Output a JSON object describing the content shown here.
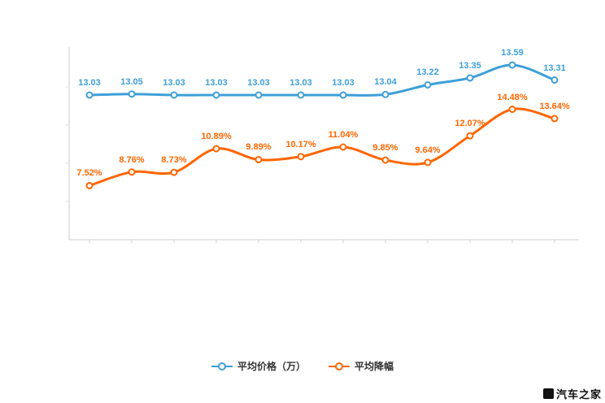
{
  "watermark": {
    "text": "汽车之家"
  },
  "legend": [
    {
      "label": "平均价格（万）",
      "color": "#3d9fd8"
    },
    {
      "label": "平均降幅",
      "color": "#ff6600"
    }
  ],
  "chart_data": {
    "type": "line",
    "title": "",
    "xlabel": "",
    "ylabel": "",
    "grid": false,
    "legend_position": "bottom",
    "x_tick_labels_visible": false,
    "n_points": 12,
    "series": [
      {
        "name": "平均价格（万）",
        "color": "#3d9fd8",
        "values": [
          13.03,
          13.05,
          13.03,
          13.03,
          13.03,
          13.03,
          13.03,
          13.04,
          13.22,
          13.35,
          13.59,
          13.31
        ],
        "labels": [
          "13.03",
          "13.05",
          "13.03",
          "13.03",
          "13.03",
          "13.03",
          "13.03",
          "13.04",
          "13.22",
          "13.35",
          "13.59",
          "13.31"
        ]
      },
      {
        "name": "平均降幅",
        "color": "#ff6600",
        "values": [
          7.52,
          8.76,
          8.73,
          10.89,
          9.89,
          10.17,
          11.04,
          9.85,
          9.64,
          12.07,
          14.48,
          13.64
        ],
        "labels": [
          "7.52%",
          "8.76%",
          "8.73%",
          "10.89%",
          "9.89%",
          "10.17%",
          "11.04%",
          "9.85%",
          "9.64%",
          "12.07%",
          "14.48%",
          "13.64%"
        ]
      }
    ]
  }
}
